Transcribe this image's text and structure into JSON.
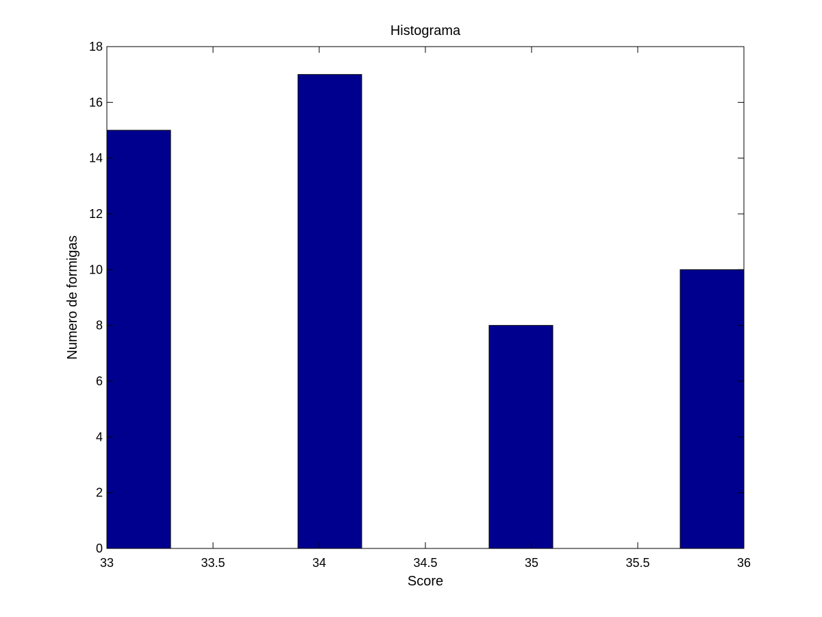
{
  "chart_data": {
    "type": "bar",
    "title": "Histograma",
    "xlabel": "Score",
    "ylabel": "Numero de formigas",
    "xlim": [
      33,
      36
    ],
    "ylim": [
      0,
      18
    ],
    "x_ticks": [
      33,
      33.5,
      34,
      34.5,
      35,
      35.5,
      36
    ],
    "x_tick_labels": [
      "33",
      "33.5",
      "34",
      "34.5",
      "35",
      "35.5",
      "36"
    ],
    "y_ticks": [
      0,
      2,
      4,
      6,
      8,
      10,
      12,
      14,
      16,
      18
    ],
    "y_tick_labels": [
      "0",
      "2",
      "4",
      "6",
      "8",
      "10",
      "12",
      "14",
      "16",
      "18"
    ],
    "bar_width": 0.3,
    "bars": [
      {
        "x": 33.15,
        "value": 15
      },
      {
        "x": 33.45,
        "value": 0
      },
      {
        "x": 33.75,
        "value": 0
      },
      {
        "x": 34.05,
        "value": 17
      },
      {
        "x": 34.35,
        "value": 0
      },
      {
        "x": 34.65,
        "value": 0
      },
      {
        "x": 34.95,
        "value": 8
      },
      {
        "x": 35.25,
        "value": 0
      },
      {
        "x": 35.55,
        "value": 0
      },
      {
        "x": 35.85,
        "value": 10
      }
    ],
    "bar_color": "#00008F",
    "bar_edge_color": "#000000",
    "grid": false,
    "legend": "none"
  }
}
